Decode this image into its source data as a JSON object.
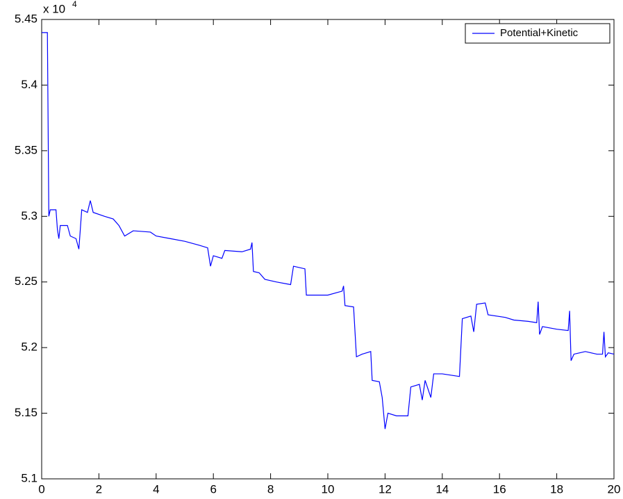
{
  "chart_data": {
    "type": "line",
    "y_scale_label": "x 10",
    "y_scale_exponent": "4",
    "x": [
      0,
      0.2,
      0.25,
      0.3,
      0.5,
      0.55,
      0.6,
      0.65,
      0.9,
      1.0,
      1.2,
      1.3,
      1.35,
      1.4,
      1.6,
      1.7,
      1.8,
      2.2,
      2.5,
      2.7,
      2.9,
      3.2,
      3.8,
      4.0,
      4.5,
      5.0,
      5.5,
      5.8,
      5.9,
      6.0,
      6.3,
      6.4,
      7.0,
      7.3,
      7.35,
      7.4,
      7.6,
      7.8,
      8.2,
      8.7,
      8.8,
      9.2,
      9.25,
      9.5,
      10.0,
      10.5,
      10.55,
      10.6,
      10.9,
      11.0,
      11.2,
      11.5,
      11.55,
      11.8,
      11.9,
      12.0,
      12.1,
      12.4,
      12.8,
      12.9,
      13.2,
      13.3,
      13.4,
      13.6,
      13.7,
      14.0,
      14.6,
      14.7,
      15.0,
      15.1,
      15.2,
      15.5,
      15.6,
      16.2,
      16.5,
      17.0,
      17.3,
      17.35,
      17.4,
      17.5,
      18.0,
      18.4,
      18.45,
      18.5,
      18.6,
      19.0,
      19.4,
      19.6,
      19.65,
      19.7,
      19.8,
      20.0
    ],
    "series": [
      {
        "name": "Potential+Kinetic",
        "color": "#0000ff",
        "values": [
          5.44,
          5.44,
          5.3,
          5.305,
          5.305,
          5.29,
          5.283,
          5.293,
          5.293,
          5.285,
          5.283,
          5.275,
          5.29,
          5.305,
          5.303,
          5.312,
          5.303,
          5.3,
          5.298,
          5.293,
          5.285,
          5.289,
          5.288,
          5.285,
          5.283,
          5.281,
          5.278,
          5.276,
          5.262,
          5.27,
          5.268,
          5.274,
          5.273,
          5.275,
          5.28,
          5.258,
          5.257,
          5.252,
          5.25,
          5.248,
          5.262,
          5.26,
          5.24,
          5.24,
          5.24,
          5.243,
          5.247,
          5.232,
          5.231,
          5.193,
          5.195,
          5.197,
          5.175,
          5.174,
          5.162,
          5.138,
          5.15,
          5.148,
          5.148,
          5.17,
          5.172,
          5.16,
          5.175,
          5.162,
          5.18,
          5.18,
          5.178,
          5.222,
          5.224,
          5.212,
          5.233,
          5.234,
          5.225,
          5.223,
          5.221,
          5.22,
          5.219,
          5.235,
          5.21,
          5.216,
          5.214,
          5.213,
          5.228,
          5.19,
          5.195,
          5.197,
          5.195,
          5.195,
          5.212,
          5.193,
          5.196,
          5.195
        ]
      }
    ],
    "xlim": [
      0,
      20
    ],
    "xticks": [
      0,
      2,
      4,
      6,
      8,
      10,
      12,
      14,
      16,
      18,
      20
    ],
    "ylim": [
      5.1,
      5.45
    ],
    "yticks": [
      5.1,
      5.15,
      5.2,
      5.25,
      5.3,
      5.35,
      5.4,
      5.45
    ],
    "grid": false,
    "legend": "top-right"
  }
}
